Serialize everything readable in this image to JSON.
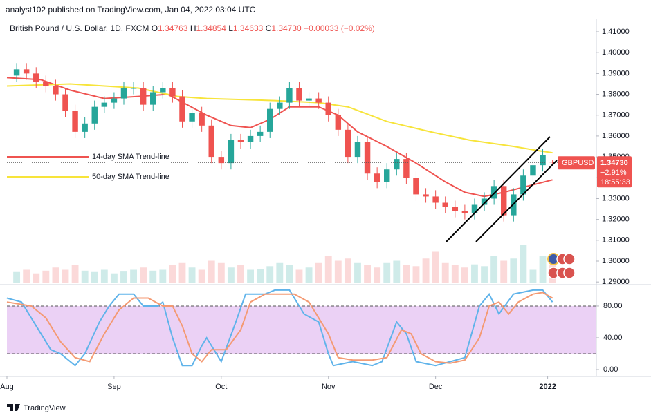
{
  "header": {
    "publisher": "analyst102 published on TradingView.com, Jan 04, 2022 03:04 UTC",
    "symbol": "British Pound / U.S. Dollar, 1D, FXCM",
    "ohlc": [
      {
        "key": "O",
        "value": "1.34763"
      },
      {
        "key": "H",
        "value": "1.34854"
      },
      {
        "key": "L",
        "value": "1.34633"
      },
      {
        "key": "C",
        "value": "1.34730"
      }
    ],
    "change": "−0.00033 (−0.02%)"
  },
  "price_tag": {
    "symbol": "GBPUSD",
    "price": "1.34730",
    "percent": "−2.91%",
    "countdown": "18:55:33"
  },
  "footer": "TradingView",
  "chart_data": [
    {
      "type": "candlestick",
      "up_color": "#26a69a",
      "down_color": "#ef5350",
      "xlim": [
        -2,
        119
      ],
      "ylim": [
        1.2894,
        1.4153
      ],
      "yticks": [
        {
          "value": 1.29,
          "label": "1.29000"
        },
        {
          "value": 1.3,
          "label": "1.30000"
        },
        {
          "value": 1.31,
          "label": "1.31000"
        },
        {
          "value": 1.32,
          "label": "1.32000"
        },
        {
          "value": 1.33,
          "label": "1.33000"
        },
        {
          "value": 1.34,
          "label": "1.34000"
        },
        {
          "value": 1.35,
          "label": "1.35000"
        },
        {
          "value": 1.36,
          "label": "1.36000"
        },
        {
          "value": 1.37,
          "label": "1.37000"
        },
        {
          "value": 1.38,
          "label": "1.38000"
        },
        {
          "value": 1.39,
          "label": "1.39000"
        },
        {
          "value": 1.4,
          "label": "1.40000"
        },
        {
          "value": 1.41,
          "label": "1.41000"
        }
      ],
      "x": [
        0,
        2,
        4,
        6,
        8,
        10,
        12,
        14,
        16,
        18,
        20,
        22,
        24,
        26,
        28,
        30,
        32,
        34,
        36,
        38,
        40,
        42,
        44,
        46,
        48,
        50,
        52,
        54,
        56,
        58,
        60,
        62,
        64,
        66,
        68,
        70,
        72,
        74,
        76,
        78,
        80,
        82,
        84,
        86,
        88,
        90,
        92,
        94,
        96,
        98,
        100,
        102,
        104,
        106,
        108,
        110
      ],
      "open": [
        1.389,
        1.392,
        1.39,
        1.386,
        1.384,
        1.38,
        1.372,
        1.362,
        1.366,
        1.374,
        1.376,
        1.378,
        1.383,
        1.383,
        1.375,
        1.381,
        1.383,
        1.379,
        1.367,
        1.371,
        1.365,
        1.35,
        1.347,
        1.358,
        1.357,
        1.36,
        1.362,
        1.373,
        1.376,
        1.383,
        1.377,
        1.378,
        1.376,
        1.37,
        1.363,
        1.35,
        1.357,
        1.342,
        1.338,
        1.344,
        1.349,
        1.34,
        1.332,
        1.331,
        1.328,
        1.326,
        1.324,
        1.323,
        1.327,
        1.33,
        1.336,
        1.322,
        1.332,
        1.341,
        1.346,
        1.34763
      ],
      "high": [
        1.395,
        1.395,
        1.393,
        1.389,
        1.387,
        1.383,
        1.375,
        1.369,
        1.377,
        1.379,
        1.381,
        1.386,
        1.386,
        1.386,
        1.384,
        1.386,
        1.386,
        1.382,
        1.374,
        1.374,
        1.368,
        1.353,
        1.361,
        1.361,
        1.363,
        1.365,
        1.376,
        1.379,
        1.386,
        1.386,
        1.381,
        1.381,
        1.379,
        1.373,
        1.366,
        1.36,
        1.36,
        1.345,
        1.347,
        1.352,
        1.352,
        1.343,
        1.335,
        1.334,
        1.331,
        1.329,
        1.327,
        1.33,
        1.333,
        1.339,
        1.339,
        1.335,
        1.344,
        1.349,
        1.354,
        1.34854
      ],
      "low": [
        1.386,
        1.387,
        1.383,
        1.381,
        1.377,
        1.369,
        1.359,
        1.359,
        1.363,
        1.371,
        1.373,
        1.375,
        1.38,
        1.372,
        1.372,
        1.378,
        1.376,
        1.364,
        1.364,
        1.362,
        1.347,
        1.344,
        1.344,
        1.354,
        1.354,
        1.357,
        1.359,
        1.37,
        1.373,
        1.374,
        1.374,
        1.373,
        1.367,
        1.36,
        1.347,
        1.347,
        1.339,
        1.335,
        1.335,
        1.341,
        1.337,
        1.329,
        1.328,
        1.325,
        1.323,
        1.321,
        1.32,
        1.32,
        1.324,
        1.327,
        1.319,
        1.319,
        1.329,
        1.338,
        1.343,
        1.34633
      ],
      "close": [
        1.392,
        1.39,
        1.386,
        1.384,
        1.38,
        1.372,
        1.362,
        1.366,
        1.374,
        1.376,
        1.378,
        1.383,
        1.383,
        1.375,
        1.381,
        1.383,
        1.379,
        1.367,
        1.371,
        1.365,
        1.35,
        1.347,
        1.358,
        1.357,
        1.36,
        1.362,
        1.373,
        1.376,
        1.383,
        1.377,
        1.378,
        1.376,
        1.37,
        1.363,
        1.35,
        1.357,
        1.342,
        1.338,
        1.344,
        1.349,
        1.34,
        1.332,
        1.331,
        1.328,
        1.326,
        1.324,
        1.323,
        1.327,
        1.33,
        1.336,
        1.322,
        1.332,
        1.341,
        1.346,
        1.351,
        1.3473
      ],
      "volume_lim": [
        0,
        100
      ],
      "volume": [
        25,
        30,
        22,
        28,
        35,
        30,
        40,
        28,
        25,
        30,
        22,
        26,
        30,
        35,
        28,
        30,
        40,
        45,
        35,
        30,
        50,
        45,
        35,
        40,
        30,
        32,
        38,
        45,
        40,
        30,
        35,
        45,
        60,
        50,
        55,
        45,
        40,
        35,
        45,
        50,
        40,
        38,
        55,
        70,
        45,
        40,
        35,
        42,
        38,
        60,
        50,
        55,
        85,
        30,
        60,
        40
      ],
      "series": [
        {
          "name": "14-day SMA Trend-line",
          "color": "#ef5350",
          "x": [
            -2,
            5,
            11,
            18,
            25,
            31,
            35,
            39,
            44,
            48,
            52,
            56,
            62,
            66,
            70,
            76,
            82,
            88,
            92,
            96,
            100,
            105,
            110
          ],
          "values": [
            1.388,
            1.387,
            1.382,
            1.378,
            1.379,
            1.38,
            1.375,
            1.37,
            1.365,
            1.364,
            1.368,
            1.374,
            1.374,
            1.37,
            1.362,
            1.355,
            1.347,
            1.338,
            1.333,
            1.331,
            1.333,
            1.336,
            1.339
          ]
        },
        {
          "name": "50-day SMA Trend-line",
          "color": "#f7e43a",
          "x": [
            -2,
            11,
            25,
            33,
            39,
            53,
            62,
            68,
            76,
            85,
            93,
            102,
            107,
            110
          ],
          "values": [
            1.384,
            1.385,
            1.383,
            1.379,
            1.378,
            1.377,
            1.376,
            1.374,
            1.367,
            1.362,
            1.358,
            1.355,
            1.353,
            1.352
          ]
        }
      ]
    },
    {
      "type": "line",
      "xlim": [
        -2,
        119
      ],
      "ylim": [
        -8.7,
        104.3
      ],
      "band": [
        20,
        80
      ],
      "band_color": "#e6c6f2",
      "yticks": [
        {
          "value": 0,
          "label": "0.00"
        },
        {
          "value": 40,
          "label": "40.00"
        },
        {
          "value": 80,
          "label": "80.00"
        }
      ],
      "xticks": [
        {
          "value": -2,
          "label": "Aug"
        },
        {
          "value": 20,
          "label": "Sep"
        },
        {
          "value": 42,
          "label": "Oct"
        },
        {
          "value": 64,
          "label": "Nov"
        },
        {
          "value": 86,
          "label": "Dec"
        },
        {
          "value": 109,
          "label": "2022"
        }
      ],
      "series": [
        {
          "color": "#5fb3ea",
          "x": [
            -2,
            1,
            4,
            7,
            9,
            12,
            14,
            17,
            19,
            21,
            24,
            26,
            29,
            30,
            32,
            34,
            36,
            38,
            39,
            42,
            45,
            47,
            51,
            53,
            56,
            59,
            62,
            64,
            65,
            69,
            73,
            75,
            78,
            80,
            82,
            86,
            89,
            92,
            95,
            97,
            99,
            102,
            106,
            108,
            110
          ],
          "values": [
            90,
            85,
            55,
            25,
            20,
            5,
            20,
            60,
            80,
            95,
            95,
            80,
            80,
            85,
            40,
            5,
            5,
            30,
            40,
            10,
            60,
            95,
            95,
            100,
            100,
            70,
            60,
            20,
            5,
            10,
            5,
            10,
            60,
            45,
            10,
            5,
            10,
            15,
            80,
            95,
            70,
            95,
            100,
            100,
            85
          ]
        },
        {
          "color": "#f49a73",
          "x": [
            -2,
            3,
            6,
            9,
            12,
            15,
            18,
            21,
            24,
            27,
            30,
            32,
            34,
            36,
            38,
            40,
            43,
            46,
            48,
            51,
            54,
            57,
            60,
            62,
            64,
            66,
            69,
            73,
            76,
            79,
            81,
            83,
            86,
            89,
            92,
            95,
            97,
            99,
            101,
            103,
            106,
            108,
            110
          ],
          "values": [
            85,
            80,
            65,
            35,
            15,
            10,
            45,
            75,
            90,
            90,
            80,
            80,
            55,
            20,
            10,
            25,
            25,
            50,
            85,
            95,
            95,
            95,
            85,
            65,
            45,
            15,
            12,
            12,
            15,
            50,
            45,
            20,
            10,
            8,
            12,
            40,
            80,
            85,
            70,
            85,
            95,
            97,
            90
          ]
        }
      ]
    }
  ]
}
